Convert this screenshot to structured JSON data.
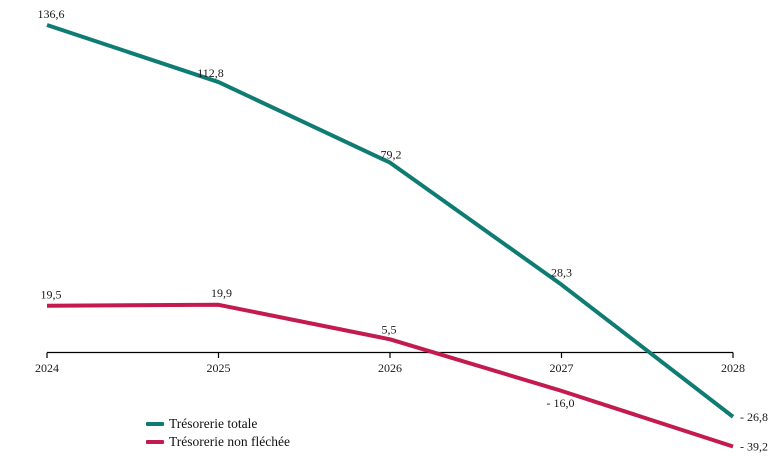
{
  "chart_data": {
    "type": "line",
    "categories": [
      "2024",
      "2025",
      "2026",
      "2027",
      "2028"
    ],
    "series": [
      {
        "name": "Trésorerie totale",
        "color": "#0e7c72",
        "values": [
          136.6,
          112.8,
          79.2,
          28.3,
          -26.8
        ],
        "point_labels": [
          "136,6",
          "112,8",
          "79,2",
          "28,3",
          "- 26,8"
        ]
      },
      {
        "name": "Trésorerie non fléchée",
        "color": "#c31a4f",
        "values": [
          19.5,
          19.9,
          5.5,
          -16.0,
          -39.2
        ],
        "point_labels": [
          "19,5",
          "19,9",
          "5,5",
          "- 16,0",
          "- 39,2"
        ]
      }
    ],
    "title": "",
    "xlabel": "",
    "ylabel": "",
    "ylim": [
      -45,
      145
    ],
    "grid": false,
    "legend_position": "bottom-left",
    "axis_color": "#000000",
    "label_color": "#1a1a1a"
  }
}
